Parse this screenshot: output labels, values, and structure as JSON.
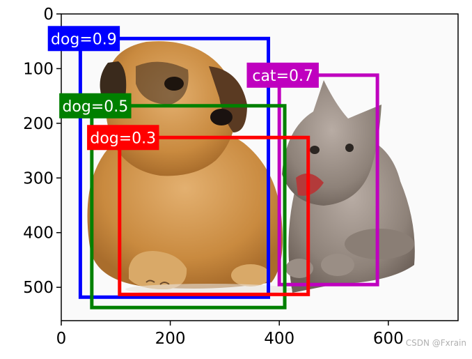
{
  "x_axis": {
    "ticks": [
      "0",
      "200",
      "400",
      "600"
    ],
    "tick_values": [
      0,
      200,
      400,
      600
    ]
  },
  "y_axis": {
    "ticks": [
      "0",
      "100",
      "200",
      "300",
      "400",
      "500"
    ],
    "tick_values": [
      0,
      100,
      200,
      300,
      400,
      500
    ]
  },
  "image_extent": {
    "width": 728,
    "height": 561
  },
  "boxes": [
    {
      "label": "dog=0.9",
      "color": "#0000ff",
      "x1": 35,
      "y1": 45,
      "x2": 380,
      "y2": 518
    },
    {
      "label": "cat=0.7",
      "color": "#bf00bf",
      "x1": 400,
      "y1": 112,
      "x2": 580,
      "y2": 495
    },
    {
      "label": "dog=0.5",
      "color": "#008000",
      "x1": 56,
      "y1": 168,
      "x2": 410,
      "y2": 537
    },
    {
      "label": "dog=0.3",
      "color": "#ff0000",
      "x1": 107,
      "y1": 226,
      "x2": 453,
      "y2": 513
    }
  ],
  "watermark": "CSDN @Fxrain"
}
